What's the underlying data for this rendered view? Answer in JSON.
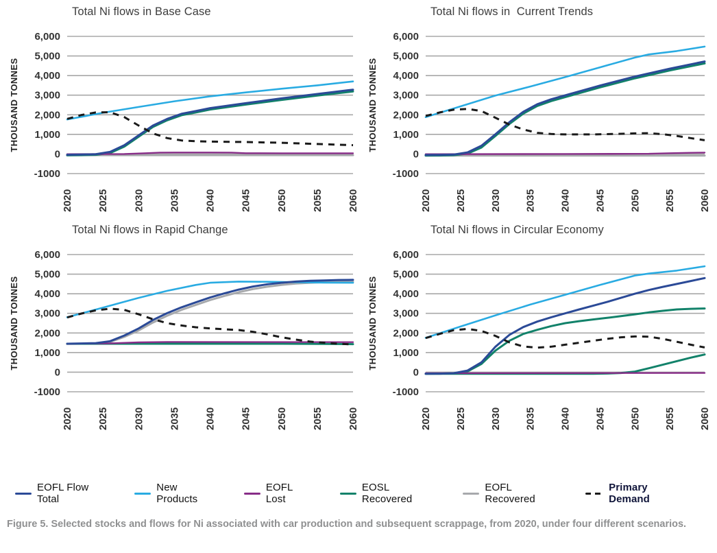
{
  "figure": {
    "caption": "Figure 5. Selected stocks and flows for Ni associated with car production and subsequent scrappage, from 2020, under four different scenarios."
  },
  "legend": {
    "items": [
      {
        "key": "eofl_flow_total",
        "label": "EOFL Flow Total",
        "color": "#2B4A97",
        "dashed": false,
        "bold": false
      },
      {
        "key": "new_products",
        "label": "New Products",
        "color": "#29ABE2",
        "dashed": false,
        "bold": false
      },
      {
        "key": "eofl_lost",
        "label": "EOFL Lost",
        "color": "#882D88",
        "dashed": false,
        "bold": false
      },
      {
        "key": "eosl_recovered",
        "label": "EOSL Recovered",
        "color": "#12826A",
        "dashed": false,
        "bold": false
      },
      {
        "key": "eofl_recovered",
        "label": "EOFL Recovered",
        "color": "#A7A9AC",
        "dashed": false,
        "bold": false
      },
      {
        "key": "primary_demand",
        "label": "Primary Demand",
        "color": "#1A1A1A",
        "dashed": true,
        "bold": true
      }
    ]
  },
  "axes": {
    "ylabel": "THOUSAND TONNES",
    "ylim": [
      -1000,
      6000
    ],
    "xlim": [
      2020,
      2060
    ],
    "grid": "horizontal",
    "y_ticks": [
      {
        "v": 6000,
        "label": "6,000"
      },
      {
        "v": 5000,
        "label": "5,000"
      },
      {
        "v": 4000,
        "label": "4,000"
      },
      {
        "v": 3000,
        "label": "3,000"
      },
      {
        "v": 2000,
        "label": "2,000"
      },
      {
        "v": 1000,
        "label": "1,000"
      },
      {
        "v": 0,
        "label": "0"
      },
      {
        "v": -1000,
        "label": "-1000"
      }
    ],
    "x_ticks": [
      {
        "v": 2020,
        "label": "2020"
      },
      {
        "v": 2025,
        "label": "2025"
      },
      {
        "v": 2030,
        "label": "2030"
      },
      {
        "v": 2035,
        "label": "2035"
      },
      {
        "v": 2040,
        "label": "2040"
      },
      {
        "v": 2045,
        "label": "2045"
      },
      {
        "v": 2050,
        "label": "2050"
      },
      {
        "v": 2055,
        "label": "2055"
      },
      {
        "v": 2060,
        "label": "2060"
      }
    ]
  },
  "chart_data": [
    {
      "type": "line",
      "title": "Total Ni flows in Base Case",
      "series": [
        {
          "key": "eofl_recovered",
          "name": "EOFL Recovered",
          "x": [
            2020,
            2060
          ],
          "y": [
            -60,
            -60
          ]
        },
        {
          "key": "eosl_recovered",
          "name": "EOSL Recovered",
          "x": [
            2020,
            2022,
            2024,
            2026,
            2028,
            2030,
            2032,
            2034,
            2036,
            2038,
            2040,
            2045,
            2050,
            2055,
            2060
          ],
          "y": [
            -70,
            -60,
            -40,
            50,
            380,
            880,
            1380,
            1720,
            1980,
            2120,
            2270,
            2520,
            2760,
            2980,
            3190
          ]
        },
        {
          "key": "eofl_lost",
          "name": "EOFL Lost",
          "x": [
            2020,
            2028,
            2031,
            2033,
            2036,
            2040,
            2043,
            2045,
            2050,
            2060
          ],
          "y": [
            -10,
            0,
            40,
            70,
            75,
            75,
            70,
            40,
            35,
            35
          ]
        },
        {
          "key": "new_products",
          "name": "New Products",
          "x": [
            2020,
            2025,
            2030,
            2035,
            2040,
            2045,
            2050,
            2055,
            2060
          ],
          "y": [
            1760,
            2100,
            2400,
            2690,
            2940,
            3140,
            3330,
            3500,
            3700
          ]
        },
        {
          "key": "eofl_flow_total",
          "name": "EOFL Flow Total",
          "x": [
            2020,
            2022,
            2024,
            2026,
            2028,
            2030,
            2032,
            2034,
            2036,
            2038,
            2040,
            2045,
            2050,
            2055,
            2060
          ],
          "y": [
            -40,
            -30,
            -10,
            110,
            450,
            950,
            1450,
            1790,
            2050,
            2190,
            2340,
            2590,
            2840,
            3060,
            3280
          ]
        },
        {
          "key": "primary_demand",
          "name": "Primary Demand",
          "x": [
            2020,
            2022,
            2024,
            2026,
            2028,
            2030,
            2032,
            2034,
            2036,
            2038,
            2040,
            2045,
            2050,
            2055,
            2060
          ],
          "y": [
            1790,
            1990,
            2120,
            2130,
            1880,
            1450,
            1050,
            810,
            690,
            650,
            630,
            610,
            570,
            510,
            450
          ]
        }
      ]
    },
    {
      "type": "line",
      "title": "Total Ni flows in  Current Trends",
      "series": [
        {
          "key": "eofl_recovered",
          "name": "EOFL Recovered",
          "x": [
            2020,
            2060
          ],
          "y": [
            -80,
            -80
          ]
        },
        {
          "key": "eosl_recovered",
          "name": "EOSL Recovered",
          "x": [
            2020,
            2022,
            2024,
            2026,
            2028,
            2030,
            2032,
            2034,
            2036,
            2038,
            2040,
            2045,
            2050,
            2055,
            2060
          ],
          "y": [
            -80,
            -75,
            -60,
            20,
            330,
            920,
            1530,
            2060,
            2450,
            2700,
            2900,
            3400,
            3860,
            4260,
            4620
          ]
        },
        {
          "key": "eofl_lost",
          "name": "EOFL Lost",
          "x": [
            2020,
            2040,
            2052,
            2055,
            2058,
            2060
          ],
          "y": [
            -10,
            0,
            10,
            40,
            60,
            70
          ]
        },
        {
          "key": "new_products",
          "name": "New Products",
          "x": [
            2020,
            2025,
            2030,
            2035,
            2040,
            2045,
            2050,
            2052,
            2056,
            2060
          ],
          "y": [
            1880,
            2430,
            2980,
            3440,
            3920,
            4420,
            4920,
            5080,
            5250,
            5480
          ]
        },
        {
          "key": "eofl_flow_total",
          "name": "EOFL Flow Total",
          "x": [
            2020,
            2022,
            2024,
            2026,
            2028,
            2030,
            2032,
            2034,
            2036,
            2038,
            2040,
            2045,
            2050,
            2055,
            2060
          ],
          "y": [
            -50,
            -45,
            -30,
            80,
            420,
            1010,
            1620,
            2150,
            2540,
            2790,
            2990,
            3490,
            3950,
            4350,
            4720
          ]
        },
        {
          "key": "primary_demand",
          "name": "Primary Demand",
          "x": [
            2020,
            2022,
            2024,
            2026,
            2028,
            2030,
            2032,
            2034,
            2036,
            2038,
            2040,
            2044,
            2048,
            2050,
            2052,
            2054,
            2056,
            2058,
            2060
          ],
          "y": [
            1940,
            2120,
            2260,
            2300,
            2190,
            1850,
            1500,
            1250,
            1080,
            1020,
            1000,
            1000,
            1030,
            1050,
            1060,
            1010,
            920,
            810,
            700
          ]
        }
      ]
    },
    {
      "type": "line",
      "title": "Total Ni flows in Rapid Change",
      "series": [
        {
          "key": "eofl_recovered",
          "name": "EOFL Recovered",
          "x": [
            2020,
            2024,
            2026,
            2028,
            2030,
            2032,
            2034,
            2036,
            2038,
            2040,
            2042,
            2044,
            2046,
            2048,
            2050,
            2052,
            2054,
            2056,
            2058,
            2060
          ],
          "y": [
            1440,
            1460,
            1540,
            1800,
            2130,
            2530,
            2880,
            3180,
            3430,
            3680,
            3890,
            4080,
            4240,
            4360,
            4450,
            4520,
            4560,
            4590,
            4600,
            4610
          ]
        },
        {
          "key": "eosl_recovered",
          "name": "EOSL Recovered",
          "x": [
            2020,
            2050,
            2056,
            2060
          ],
          "y": [
            1450,
            1450,
            1440,
            1430
          ]
        },
        {
          "key": "eofl_lost",
          "name": "EOFL Lost",
          "x": [
            2020,
            2026,
            2030,
            2034,
            2060
          ],
          "y": [
            1450,
            1470,
            1520,
            1540,
            1530
          ]
        },
        {
          "key": "new_products",
          "name": "New Products",
          "x": [
            2020,
            2025,
            2030,
            2034,
            2038,
            2040,
            2044,
            2048,
            2052,
            2056,
            2060
          ],
          "y": [
            2800,
            3290,
            3790,
            4150,
            4450,
            4560,
            4620,
            4610,
            4590,
            4570,
            4560
          ]
        },
        {
          "key": "eofl_flow_total",
          "name": "EOFL Flow Total",
          "x": [
            2020,
            2024,
            2026,
            2028,
            2030,
            2032,
            2034,
            2036,
            2038,
            2040,
            2042,
            2044,
            2046,
            2048,
            2050,
            2052,
            2054,
            2056,
            2058,
            2060
          ],
          "y": [
            1450,
            1480,
            1580,
            1870,
            2230,
            2660,
            3010,
            3310,
            3560,
            3810,
            4020,
            4210,
            4370,
            4480,
            4560,
            4620,
            4660,
            4680,
            4700,
            4710
          ]
        },
        {
          "key": "primary_demand",
          "name": "Primary Demand",
          "x": [
            2020,
            2022,
            2024,
            2026,
            2028,
            2030,
            2032,
            2034,
            2036,
            2038,
            2040,
            2042,
            2044,
            2046,
            2048,
            2050,
            2052,
            2054,
            2056,
            2058,
            2060
          ],
          "y": [
            2790,
            2990,
            3150,
            3240,
            3180,
            2950,
            2700,
            2500,
            2380,
            2290,
            2230,
            2190,
            2150,
            2060,
            1930,
            1780,
            1660,
            1560,
            1500,
            1450,
            1410
          ]
        }
      ]
    },
    {
      "type": "line",
      "title": "Total Ni flows in Circular Economy",
      "series": [
        {
          "key": "eofl_recovered",
          "name": "EOFL Recovered",
          "color": "#12826A",
          "x": [
            2020,
            2022,
            2024,
            2026,
            2028,
            2030,
            2032,
            2034,
            2036,
            2038,
            2040,
            2042,
            2044,
            2046,
            2048,
            2050,
            2052,
            2054,
            2056,
            2058,
            2060
          ],
          "y": [
            -80,
            -75,
            -60,
            40,
            420,
            1100,
            1600,
            1950,
            2160,
            2350,
            2500,
            2600,
            2690,
            2770,
            2860,
            2950,
            3050,
            3130,
            3200,
            3230,
            3250
          ]
        },
        {
          "key": "eosl_recovered",
          "name": "EOSL Recovered",
          "x": [
            2020,
            2044,
            2046,
            2048,
            2050,
            2052,
            2054,
            2056,
            2058,
            2060
          ],
          "y": [
            -80,
            -80,
            -70,
            -40,
            30,
            200,
            380,
            560,
            740,
            900
          ]
        },
        {
          "key": "eofl_lost",
          "name": "EOFL Lost",
          "x": [
            2020,
            2060
          ],
          "y": [
            -50,
            -40
          ]
        },
        {
          "key": "new_products",
          "name": "New Products",
          "x": [
            2020,
            2025,
            2030,
            2035,
            2040,
            2045,
            2050,
            2052,
            2056,
            2060
          ],
          "y": [
            1750,
            2330,
            2900,
            3450,
            3950,
            4450,
            4930,
            5030,
            5180,
            5400
          ]
        },
        {
          "key": "eofl_flow_total",
          "name": "EOFL Flow Total",
          "x": [
            2020,
            2022,
            2024,
            2026,
            2028,
            2030,
            2032,
            2034,
            2036,
            2038,
            2040,
            2042,
            2044,
            2046,
            2048,
            2050,
            2052,
            2054,
            2056,
            2058,
            2060
          ],
          "y": [
            -80,
            -75,
            -55,
            80,
            500,
            1300,
            1900,
            2300,
            2580,
            2800,
            3000,
            3200,
            3390,
            3580,
            3790,
            4000,
            4190,
            4350,
            4500,
            4650,
            4800
          ]
        },
        {
          "key": "primary_demand",
          "name": "Primary Demand",
          "x": [
            2020,
            2022,
            2024,
            2026,
            2028,
            2030,
            2032,
            2034,
            2036,
            2038,
            2040,
            2042,
            2044,
            2046,
            2048,
            2050,
            2052,
            2054,
            2056,
            2058,
            2060
          ],
          "y": [
            1740,
            1950,
            2140,
            2210,
            2100,
            1850,
            1520,
            1310,
            1250,
            1300,
            1400,
            1500,
            1600,
            1700,
            1780,
            1820,
            1810,
            1700,
            1550,
            1400,
            1260
          ]
        }
      ]
    }
  ]
}
